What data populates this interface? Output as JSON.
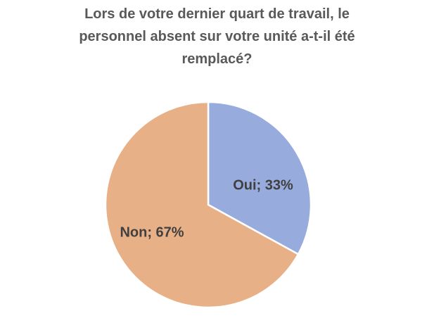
{
  "chart_data": {
    "type": "pie",
    "title_lines": [
      "Lors de votre dernier quart de travail, le",
      "personnel absent sur votre unité a-t-il été",
      "remplacé?"
    ],
    "slices": [
      {
        "name": "Oui",
        "value": 33,
        "label": "Oui; 33%",
        "color": "#97acdc"
      },
      {
        "name": "Non",
        "value": 67,
        "label": "Non; 67%",
        "color": "#e8b086"
      }
    ],
    "start_angle": "12 o'clock",
    "direction": "clockwise",
    "slice_border_color": "#ffffff",
    "legend": "none"
  }
}
